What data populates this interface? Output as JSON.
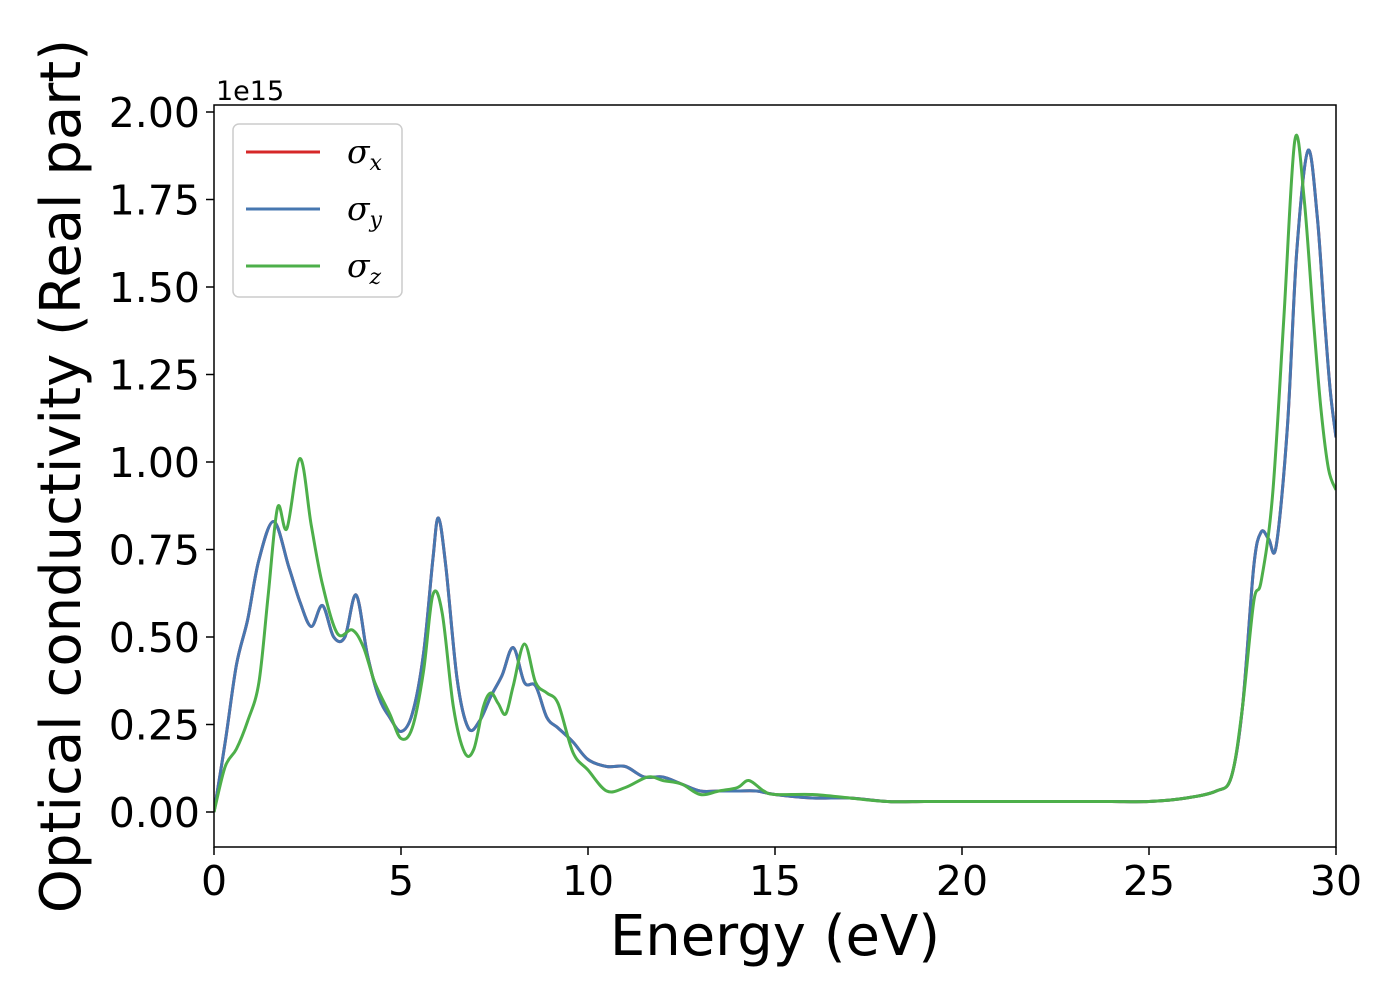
{
  "chart_data": {
    "type": "line",
    "xlabel": "Energy (eV)",
    "ylabel": "Optical conductivity (Real part)",
    "y_offset_label": "1e15",
    "xlim": [
      0,
      30
    ],
    "ylim": [
      -0.1,
      2.02
    ],
    "xticks": [
      0,
      5,
      10,
      15,
      20,
      25,
      30
    ],
    "yticks": [
      0.0,
      0.25,
      0.5,
      0.75,
      1.0,
      1.25,
      1.5,
      1.75,
      2.0
    ],
    "ytick_labels": [
      "0.00",
      "0.25",
      "0.50",
      "0.75",
      "1.00",
      "1.25",
      "1.50",
      "1.75",
      "2.00"
    ],
    "grid": false,
    "legend_position": "top-left",
    "series": [
      {
        "name": "σx",
        "symbol": "σ",
        "sub": "x",
        "color": "#d62728",
        "x": [
          0.0,
          0.3,
          0.6,
          0.9,
          1.2,
          1.6,
          2.0,
          2.3,
          2.6,
          2.9,
          3.2,
          3.5,
          3.8,
          4.1,
          4.4,
          4.7,
          5.0,
          5.3,
          5.6,
          5.85,
          6.0,
          6.2,
          6.5,
          6.8,
          7.1,
          7.4,
          7.7,
          8.0,
          8.3,
          8.6,
          8.9,
          9.2,
          9.6,
          10.0,
          10.5,
          11.0,
          11.5,
          12.0,
          12.5,
          13.0,
          13.5,
          14.0,
          14.5,
          15.0,
          16.0,
          17.0,
          18.0,
          19.0,
          20.0,
          21.0,
          22.0,
          23.0,
          24.0,
          25.0,
          26.0,
          26.8,
          27.2,
          27.5,
          27.8,
          28.0,
          28.2,
          28.4,
          28.7,
          28.95,
          29.25,
          29.5,
          29.7,
          29.85,
          30.0
        ],
        "values": [
          0.0,
          0.2,
          0.42,
          0.55,
          0.72,
          0.83,
          0.7,
          0.6,
          0.53,
          0.59,
          0.5,
          0.5,
          0.62,
          0.45,
          0.33,
          0.27,
          0.23,
          0.28,
          0.45,
          0.72,
          0.84,
          0.7,
          0.38,
          0.24,
          0.26,
          0.33,
          0.39,
          0.47,
          0.37,
          0.36,
          0.27,
          0.24,
          0.2,
          0.15,
          0.13,
          0.13,
          0.1,
          0.1,
          0.08,
          0.06,
          0.06,
          0.06,
          0.06,
          0.05,
          0.04,
          0.04,
          0.03,
          0.03,
          0.03,
          0.03,
          0.03,
          0.03,
          0.03,
          0.03,
          0.04,
          0.06,
          0.1,
          0.3,
          0.7,
          0.8,
          0.78,
          0.76,
          1.1,
          1.6,
          1.89,
          1.7,
          1.4,
          1.2,
          1.07
        ]
      },
      {
        "name": "σy",
        "symbol": "σ",
        "sub": "y",
        "color": "#4777b0",
        "x": [
          0.0,
          0.3,
          0.6,
          0.9,
          1.2,
          1.6,
          2.0,
          2.3,
          2.6,
          2.9,
          3.2,
          3.5,
          3.8,
          4.1,
          4.4,
          4.7,
          5.0,
          5.3,
          5.6,
          5.85,
          6.0,
          6.2,
          6.5,
          6.8,
          7.1,
          7.4,
          7.7,
          8.0,
          8.3,
          8.6,
          8.9,
          9.2,
          9.6,
          10.0,
          10.5,
          11.0,
          11.5,
          12.0,
          12.5,
          13.0,
          13.5,
          14.0,
          14.5,
          15.0,
          16.0,
          17.0,
          18.0,
          19.0,
          20.0,
          21.0,
          22.0,
          23.0,
          24.0,
          25.0,
          26.0,
          26.8,
          27.2,
          27.5,
          27.8,
          28.0,
          28.2,
          28.4,
          28.7,
          28.95,
          29.25,
          29.5,
          29.7,
          29.85,
          30.0
        ],
        "values": [
          0.0,
          0.2,
          0.42,
          0.55,
          0.72,
          0.83,
          0.7,
          0.6,
          0.53,
          0.59,
          0.5,
          0.5,
          0.62,
          0.45,
          0.33,
          0.27,
          0.23,
          0.28,
          0.45,
          0.72,
          0.84,
          0.7,
          0.38,
          0.24,
          0.26,
          0.33,
          0.39,
          0.47,
          0.37,
          0.36,
          0.27,
          0.24,
          0.2,
          0.15,
          0.13,
          0.13,
          0.1,
          0.1,
          0.08,
          0.06,
          0.06,
          0.06,
          0.06,
          0.05,
          0.04,
          0.04,
          0.03,
          0.03,
          0.03,
          0.03,
          0.03,
          0.03,
          0.03,
          0.03,
          0.04,
          0.06,
          0.1,
          0.3,
          0.7,
          0.8,
          0.78,
          0.76,
          1.1,
          1.6,
          1.89,
          1.7,
          1.4,
          1.2,
          1.07
        ]
      },
      {
        "name": "σz",
        "symbol": "σ",
        "sub": "z",
        "color": "#4daf4a",
        "x": [
          0.0,
          0.3,
          0.6,
          0.9,
          1.2,
          1.45,
          1.7,
          1.95,
          2.3,
          2.6,
          2.9,
          3.3,
          3.7,
          4.0,
          4.3,
          4.7,
          5.0,
          5.3,
          5.6,
          5.85,
          6.1,
          6.4,
          6.7,
          6.95,
          7.2,
          7.4,
          7.6,
          7.8,
          8.0,
          8.3,
          8.6,
          8.9,
          9.2,
          9.6,
          10.0,
          10.5,
          11.0,
          11.6,
          12.0,
          12.5,
          13.0,
          13.5,
          14.0,
          14.3,
          14.7,
          15.0,
          16.0,
          17.0,
          18.0,
          19.0,
          20.0,
          21.0,
          22.0,
          23.0,
          24.0,
          25.0,
          26.0,
          26.8,
          27.2,
          27.5,
          27.8,
          28.0,
          28.3,
          28.6,
          28.9,
          29.15,
          29.4,
          29.6,
          29.8,
          30.0
        ],
        "values": [
          0.0,
          0.13,
          0.18,
          0.26,
          0.37,
          0.62,
          0.87,
          0.81,
          1.01,
          0.82,
          0.65,
          0.51,
          0.52,
          0.47,
          0.37,
          0.28,
          0.21,
          0.24,
          0.4,
          0.62,
          0.57,
          0.3,
          0.17,
          0.18,
          0.3,
          0.34,
          0.31,
          0.28,
          0.36,
          0.48,
          0.37,
          0.34,
          0.31,
          0.17,
          0.12,
          0.06,
          0.07,
          0.1,
          0.09,
          0.08,
          0.05,
          0.06,
          0.07,
          0.09,
          0.06,
          0.05,
          0.05,
          0.04,
          0.03,
          0.03,
          0.03,
          0.03,
          0.03,
          0.03,
          0.03,
          0.03,
          0.04,
          0.06,
          0.1,
          0.3,
          0.6,
          0.66,
          0.9,
          1.4,
          1.92,
          1.75,
          1.4,
          1.15,
          0.98,
          0.92
        ]
      }
    ]
  }
}
